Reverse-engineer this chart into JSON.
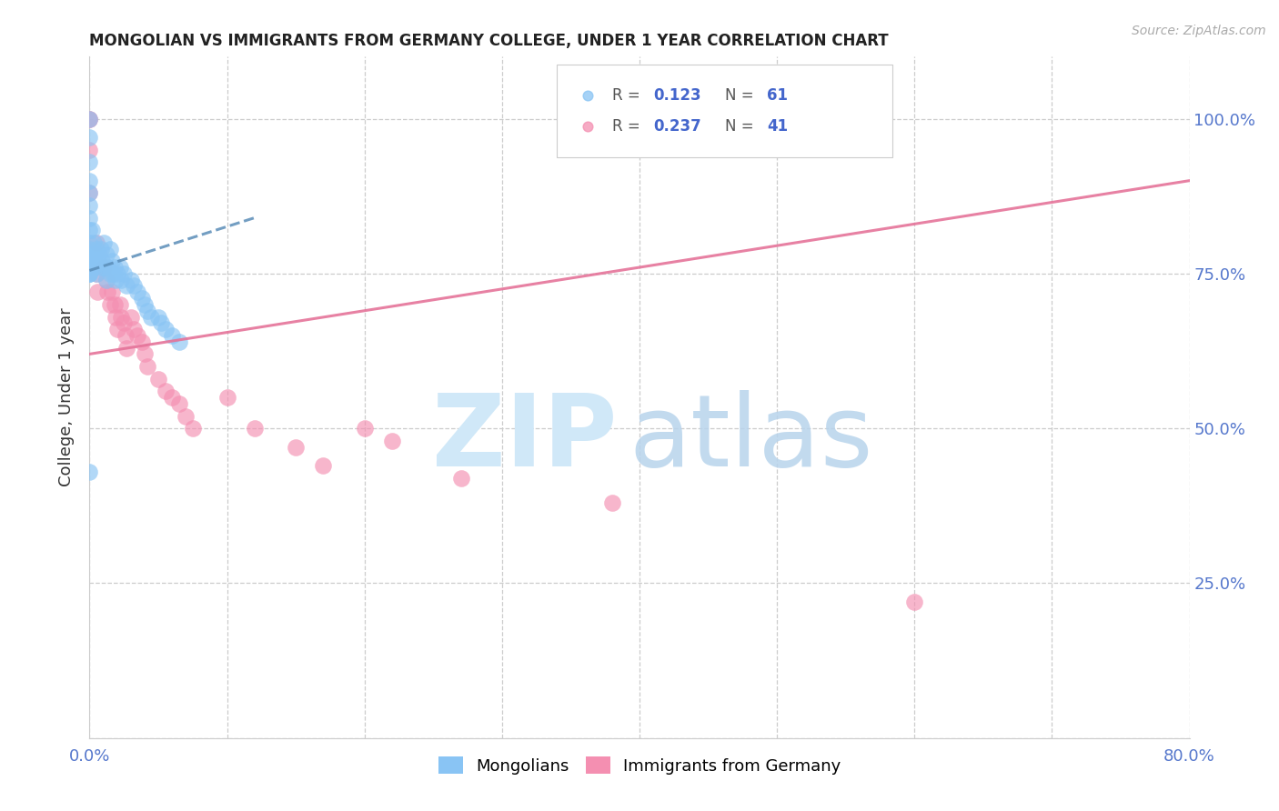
{
  "title": "MONGOLIAN VS IMMIGRANTS FROM GERMANY COLLEGE, UNDER 1 YEAR CORRELATION CHART",
  "source": "Source: ZipAtlas.com",
  "ylabel": "College, Under 1 year",
  "xmin": 0.0,
  "xmax": 0.8,
  "ymin": 0.0,
  "ymax": 1.1,
  "xtick_positions": [
    0.0,
    0.1,
    0.2,
    0.3,
    0.4,
    0.5,
    0.6,
    0.7,
    0.8
  ],
  "xticklabels": [
    "0.0%",
    "",
    "",
    "",
    "",
    "",
    "",
    "",
    "80.0%"
  ],
  "ytick_positions": [
    0.0,
    0.25,
    0.5,
    0.75,
    1.0
  ],
  "yticklabels_left": [
    "",
    "",
    "",
    "",
    ""
  ],
  "yticklabels_right": [
    "",
    "25.0%",
    "50.0%",
    "75.0%",
    "100.0%"
  ],
  "blue_color": "#89C4F4",
  "pink_color": "#F48FB1",
  "blue_line_color": "#5B8DB8",
  "pink_line_color": "#E57399",
  "mongolian_x": [
    0.0,
    0.0,
    0.0,
    0.0,
    0.0,
    0.0,
    0.0,
    0.0,
    0.0,
    0.0,
    0.0,
    0.0,
    0.0,
    0.0,
    0.0,
    0.0,
    0.0,
    0.0,
    0.0,
    0.0,
    0.002,
    0.002,
    0.003,
    0.003,
    0.004,
    0.005,
    0.005,
    0.006,
    0.007,
    0.008,
    0.008,
    0.009,
    0.01,
    0.01,
    0.012,
    0.012,
    0.013,
    0.015,
    0.015,
    0.016,
    0.017,
    0.018,
    0.019,
    0.02,
    0.022,
    0.023,
    0.025,
    0.027,
    0.03,
    0.032,
    0.035,
    0.038,
    0.04,
    0.042,
    0.045,
    0.05,
    0.052,
    0.055,
    0.06,
    0.065,
    0.0
  ],
  "mongolian_y": [
    1.0,
    0.97,
    0.93,
    0.9,
    0.88,
    0.86,
    0.84,
    0.82,
    0.8,
    0.79,
    0.78,
    0.78,
    0.77,
    0.77,
    0.76,
    0.76,
    0.76,
    0.75,
    0.75,
    0.75,
    0.82,
    0.78,
    0.8,
    0.76,
    0.78,
    0.79,
    0.75,
    0.77,
    0.78,
    0.79,
    0.76,
    0.77,
    0.8,
    0.76,
    0.78,
    0.74,
    0.76,
    0.79,
    0.75,
    0.77,
    0.75,
    0.76,
    0.74,
    0.75,
    0.76,
    0.74,
    0.75,
    0.73,
    0.74,
    0.73,
    0.72,
    0.71,
    0.7,
    0.69,
    0.68,
    0.68,
    0.67,
    0.66,
    0.65,
    0.64,
    0.43
  ],
  "germany_x": [
    0.0,
    0.0,
    0.0,
    0.0,
    0.005,
    0.005,
    0.006,
    0.01,
    0.012,
    0.013,
    0.015,
    0.016,
    0.018,
    0.019,
    0.02,
    0.022,
    0.023,
    0.025,
    0.026,
    0.027,
    0.03,
    0.032,
    0.035,
    0.038,
    0.04,
    0.042,
    0.05,
    0.055,
    0.06,
    0.065,
    0.07,
    0.075,
    0.1,
    0.12,
    0.15,
    0.17,
    0.2,
    0.22,
    0.27,
    0.38,
    0.6
  ],
  "germany_y": [
    1.0,
    1.0,
    0.95,
    0.88,
    0.8,
    0.75,
    0.72,
    0.76,
    0.74,
    0.72,
    0.7,
    0.72,
    0.7,
    0.68,
    0.66,
    0.7,
    0.68,
    0.67,
    0.65,
    0.63,
    0.68,
    0.66,
    0.65,
    0.64,
    0.62,
    0.6,
    0.58,
    0.56,
    0.55,
    0.54,
    0.52,
    0.5,
    0.55,
    0.5,
    0.47,
    0.44,
    0.5,
    0.48,
    0.42,
    0.38,
    0.22
  ],
  "blue_trend_x": [
    0.0,
    0.12
  ],
  "blue_trend_y": [
    0.755,
    0.84
  ],
  "pink_trend_x": [
    0.0,
    0.8
  ],
  "pink_trend_y": [
    0.62,
    0.9
  ]
}
